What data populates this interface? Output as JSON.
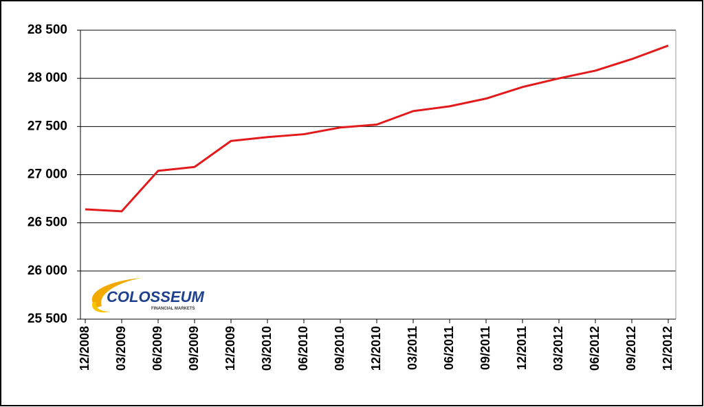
{
  "chart_data": {
    "type": "line",
    "categories": [
      "12/2008",
      "03/2009",
      "06/2009",
      "09/2009",
      "12/2009",
      "03/2010",
      "06/2010",
      "09/2010",
      "12/2010",
      "03/2011",
      "06/2011",
      "09/2011",
      "12/2011",
      "03/2012",
      "06/2012",
      "09/2012",
      "12/2012"
    ],
    "values": [
      26640,
      26620,
      27040,
      27080,
      27350,
      27390,
      27420,
      27490,
      27520,
      27660,
      27710,
      27790,
      27910,
      28000,
      28080,
      28200,
      28340
    ],
    "color": "#e31a1c",
    "ylim": [
      25500,
      28500
    ],
    "yticks": [
      {
        "value": 25500,
        "label": "25 500"
      },
      {
        "value": 26000,
        "label": "26 000"
      },
      {
        "value": 26500,
        "label": "26 500"
      },
      {
        "value": 27000,
        "label": "27 000"
      },
      {
        "value": 27500,
        "label": "27 500"
      },
      {
        "value": 28000,
        "label": "28 000"
      },
      {
        "value": 28500,
        "label": "28 500"
      }
    ],
    "grid": true,
    "logo": {
      "name": "COLOSSEUM",
      "tagline": "FINANCIAL MARKETS"
    }
  }
}
